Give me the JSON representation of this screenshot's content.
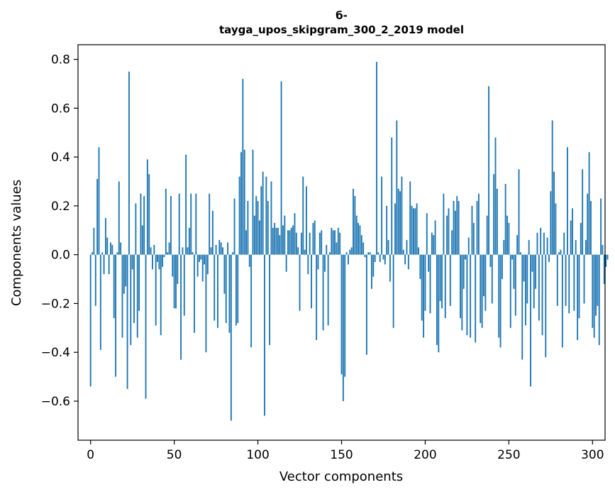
{
  "chart_data": {
    "type": "bar",
    "title_lines": [
      "б-",
      "tayga_upos_skipgram_300_2_2019 model"
    ],
    "xlabel": "Vector components",
    "ylabel": "Components values",
    "xlim": [
      -7.5,
      307.5
    ],
    "ylim": [
      -0.76,
      0.86
    ],
    "xticks": [
      0,
      50,
      100,
      150,
      200,
      250,
      300
    ],
    "xtick_labels": [
      "0",
      "50",
      "100",
      "150",
      "200",
      "250",
      "300"
    ],
    "yticks": [
      -0.6,
      -0.4,
      -0.2,
      0.0,
      0.2,
      0.4,
      0.6,
      0.8
    ],
    "ytick_labels": [
      "−0.6",
      "−0.4",
      "−0.2",
      "0.0",
      "0.2",
      "0.4",
      "0.6",
      "0.8"
    ],
    "bar_color": "#1f77b4",
    "grid": false,
    "values": [
      -0.54,
      0.01,
      0.11,
      -0.21,
      0.31,
      0.44,
      -0.39,
      0.01,
      -0.08,
      0.15,
      0.07,
      -0.08,
      0.05,
      0.04,
      -0.26,
      -0.5,
      0.01,
      0.3,
      0.05,
      -0.34,
      -0.16,
      -0.13,
      -0.55,
      0.75,
      -0.37,
      -0.06,
      -0.28,
      0.21,
      -0.34,
      -0.23,
      0.25,
      0.12,
      0.24,
      -0.59,
      0.39,
      0.33,
      0.03,
      -0.06,
      0.04,
      -0.29,
      -0.03,
      -0.06,
      -0.33,
      -0.05,
      -0.01,
      0.27,
      0.01,
      0.05,
      0.24,
      -0.09,
      -0.22,
      -0.22,
      -0.12,
      0.25,
      -0.43,
      0.03,
      -0.25,
      0.41,
      0.03,
      0.11,
      0.25,
      0.01,
      -0.32,
      0.25,
      -0.09,
      -0.03,
      -0.02,
      -0.11,
      -0.04,
      -0.4,
      -0.08,
      0.25,
      0.03,
      0.18,
      -0.27,
      0.04,
      -0.3,
      0.06,
      0.05,
      0.03,
      -0.16,
      -0.28,
      0.05,
      -0.32,
      -0.68,
      0.01,
      0.23,
      -0.29,
      -0.28,
      0.32,
      0.42,
      0.72,
      0.43,
      0.1,
      0.22,
      -0.05,
      -0.38,
      0.43,
      0.16,
      0.24,
      0.22,
      0.14,
      0.28,
      0.34,
      -0.66,
      0.32,
      0.22,
      -0.37,
      0.3,
      0.11,
      0.13,
      0.11,
      0.11,
      0.08,
      0.71,
      0.12,
      0.16,
      -0.07,
      0.1,
      0.1,
      0.11,
      0.12,
      0.17,
      0.09,
      0.03,
      -0.23,
      0.09,
      0.32,
      0.02,
      0.28,
      -0.08,
      0.09,
      -0.22,
      0.13,
      0.14,
      -0.35,
      -0.06,
      0.09,
      0.1,
      -0.31,
      -0.07,
      0.04,
      -0.29,
      0.01,
      0.11,
      0.1,
      0.1,
      0.05,
      0.11,
      0.09,
      -0.49,
      -0.6,
      -0.5,
      0.01,
      -0.04,
      0.02,
      0.03,
      0.27,
      0.24,
      0.16,
      0.13,
      0.12,
      0.08,
      0.05,
      -0.01,
      -0.41,
      0.01,
      0.01,
      -0.14,
      -0.09,
      -0.03,
      0.79,
      0.01,
      -0.03,
      0.32,
      -0.02,
      -0.04,
      0.2,
      0.06,
      -0.11,
      0.48,
      -0.3,
      0.21,
      0.55,
      0.27,
      0.26,
      0.32,
      0.02,
      -0.04,
      0.06,
      -0.06,
      0.3,
      0.2,
      0.19,
      0.19,
      0.21,
      0.03,
      -0.1,
      -0.27,
      -0.34,
      -0.23,
      0.17,
      -0.07,
      -0.24,
      0.09,
      0.08,
      0.14,
      -0.37,
      -0.4,
      -0.19,
      -0.22,
      0.25,
      -0.26,
      0.16,
      0.19,
      -0.21,
      0.1,
      0.22,
      0.18,
      0.24,
      0.22,
      -0.26,
      -0.31,
      -0.14,
      -0.02,
      -0.33,
      0.07,
      -0.34,
      0.2,
      0.13,
      -0.36,
      0.22,
      0.25,
      -0.28,
      -0.3,
      -0.17,
      -0.23,
      0.16,
      0.69,
      -0.05,
      -0.2,
      0.33,
      0.48,
      0.27,
      -0.34,
      -0.38,
      -0.1,
      0.06,
      0.29,
      0.16,
      0.13,
      -0.3,
      -0.02,
      -0.14,
      -0.25,
      0.08,
      0.35,
      0.01,
      -0.43,
      -0.11,
      -0.29,
      -0.2,
      0.06,
      -0.54,
      -0.07,
      -0.22,
      -0.14,
      0.09,
      -0.27,
      0.11,
      -0.33,
      0.09,
      -0.42,
      0.07,
      -0.03,
      0.26,
      0.55,
      0.34,
      0.21,
      -0.21,
      0.01,
      0.02,
      -0.38,
      0.09,
      -0.21,
      0.44,
      -0.24,
      0.14,
      0.19,
      -0.23,
      0.06,
      -0.35,
      -0.26,
      0.13,
      0.35,
      -0.2,
      0.06,
      0.25,
      0.42,
      0.22,
      -0.3,
      -0.34,
      -0.25,
      -0.21,
      -0.37,
      0.23,
      0.04,
      -0.12,
      -0.05,
      -0.02
    ]
  }
}
